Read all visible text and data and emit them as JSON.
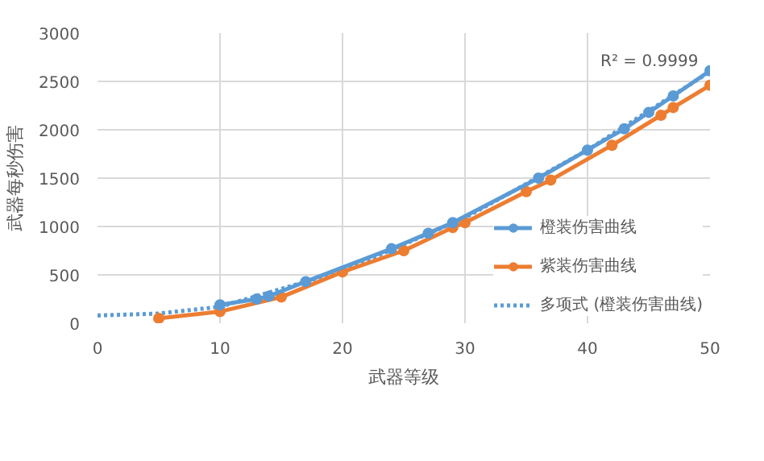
{
  "chart_data": {
    "type": "line",
    "xlabel": "武器等级",
    "ylabel": "武器每秒伤害",
    "xlim": [
      0,
      50
    ],
    "xticks": [
      0,
      10,
      20,
      30,
      40,
      50
    ],
    "ylim": [
      0,
      3000
    ],
    "yticks": [
      0,
      500,
      1000,
      1500,
      2000,
      2500,
      3000
    ],
    "grid": true,
    "legend": "bottom right",
    "marker": "circle",
    "series": [
      {
        "name": "橙装伤害曲线",
        "color": "#5b9bd5",
        "x": [
          10,
          13,
          14,
          17,
          24,
          27,
          29,
          36,
          40,
          43,
          45,
          47,
          50
        ],
        "values": [
          190,
          250,
          280,
          430,
          770,
          930,
          1040,
          1500,
          1790,
          2010,
          2180,
          2350,
          2610
        ]
      },
      {
        "name": "紫装伤害曲线",
        "color": "#ed7d31",
        "x": [
          5,
          10,
          15,
          20,
          25,
          29,
          30,
          35,
          37,
          42,
          46,
          47,
          50
        ],
        "values": [
          50,
          120,
          270,
          530,
          750,
          990,
          1040,
          1360,
          1480,
          1840,
          2150,
          2230,
          2460
        ]
      },
      {
        "name": "多项式 (橙装伤害曲线)",
        "color": "#5b9bd5",
        "line_style": "dotted",
        "marker": "none",
        "x": [
          0,
          5,
          10,
          20,
          30,
          40,
          50
        ],
        "values": [
          80,
          100,
          170,
          540,
          1090,
          1790,
          2600
        ]
      }
    ],
    "annotations": [
      "R² = 0.9999"
    ]
  }
}
